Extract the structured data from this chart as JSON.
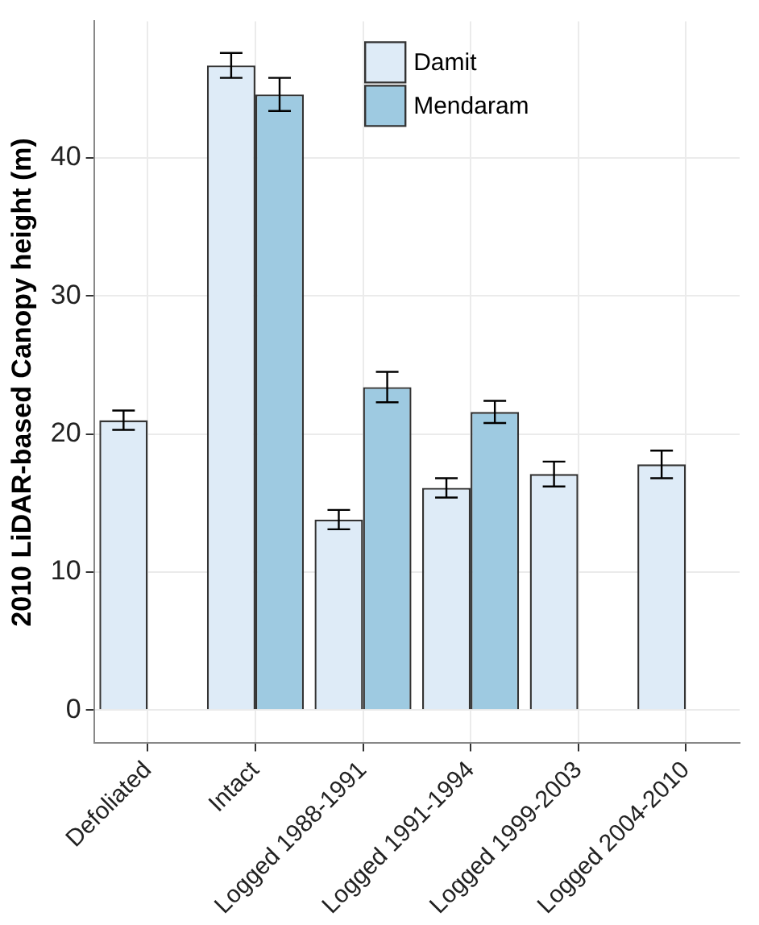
{
  "chart_data": {
    "type": "bar",
    "ylabel": "2010 LiDAR-based Canopy height (m)",
    "categories": [
      "Defoliated",
      "Intact",
      "Logged 1988-1991",
      "Logged 1991-1994",
      "Logged 1999-2003",
      "Logged 2004-2010"
    ],
    "series": [
      {
        "name": "Damit",
        "color": "#deebf7",
        "values": [
          21.0,
          46.7,
          13.8,
          16.1,
          17.1,
          17.8
        ],
        "errors": [
          0.7,
          0.9,
          0.7,
          0.7,
          0.9,
          1.0
        ]
      },
      {
        "name": "Mendaram",
        "color": "#9ecae1",
        "values": [
          null,
          44.6,
          23.4,
          21.6,
          0,
          0
        ],
        "errors": [
          null,
          1.2,
          1.1,
          0.8,
          null,
          null
        ]
      }
    ],
    "ylim": [
      -2.4,
      49.9
    ],
    "yticks": [
      0,
      10,
      20,
      30,
      40
    ],
    "grid": true,
    "legend": "top"
  }
}
